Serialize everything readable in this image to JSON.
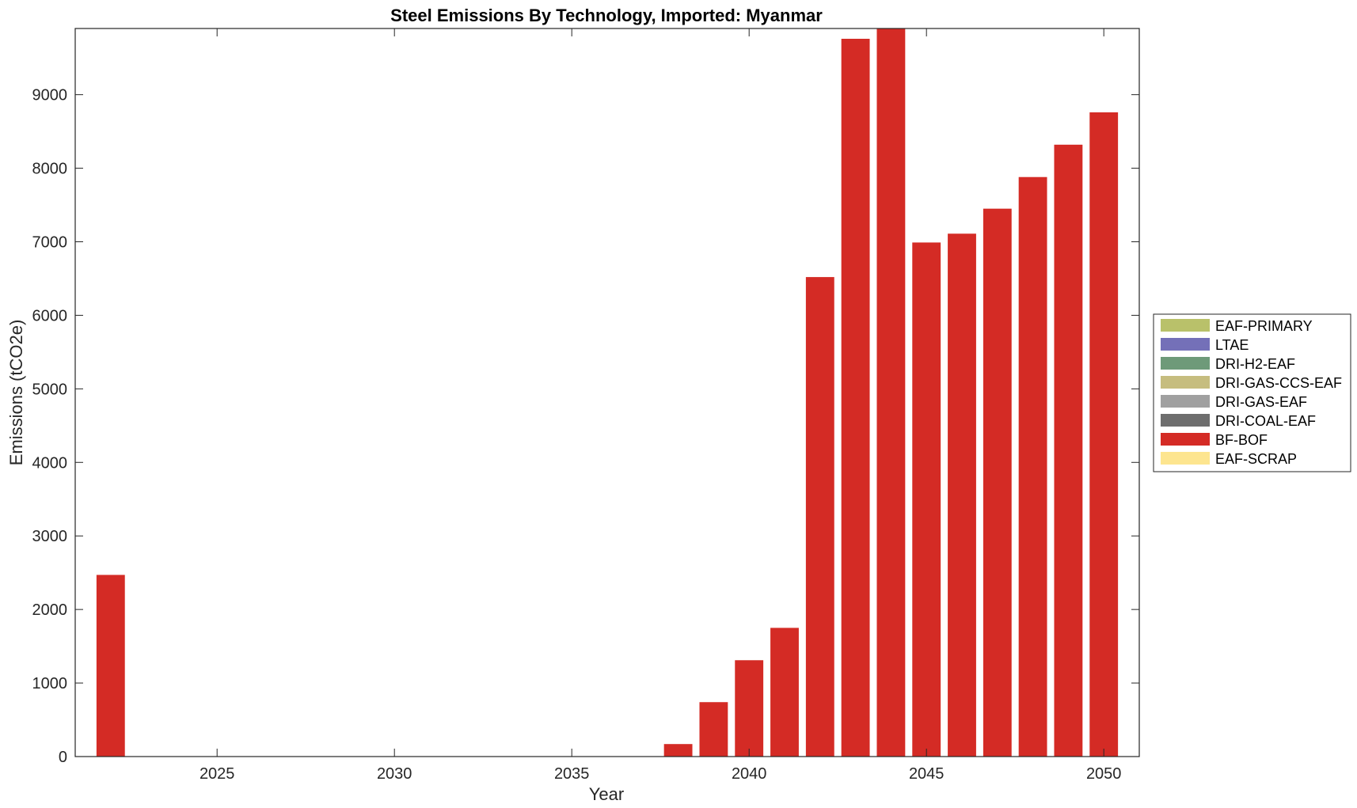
{
  "chart_data": {
    "type": "bar",
    "stacked": true,
    "title": "Steel Emissions By Technology, Imported: Myanmar",
    "xlabel": "Year",
    "ylabel": "Emissions (tCO2e)",
    "xlim": [
      2021,
      2051
    ],
    "ylim": [
      0,
      9900
    ],
    "xticks": [
      2025,
      2030,
      2035,
      2040,
      2045,
      2050
    ],
    "yticks": [
      0,
      1000,
      2000,
      3000,
      4000,
      5000,
      6000,
      7000,
      8000,
      9000
    ],
    "grid": false,
    "legend_position": "right",
    "x": [
      2022,
      2023,
      2024,
      2025,
      2026,
      2027,
      2028,
      2029,
      2030,
      2031,
      2032,
      2033,
      2034,
      2035,
      2036,
      2037,
      2038,
      2039,
      2040,
      2041,
      2042,
      2043,
      2044,
      2045,
      2046,
      2047,
      2048,
      2049,
      2050
    ],
    "series": [
      {
        "name": "EAF-PRIMARY",
        "color": "#b9c16a",
        "values": [
          0,
          0,
          0,
          0,
          0,
          0,
          0,
          0,
          0,
          0,
          0,
          0,
          0,
          0,
          0,
          0,
          0,
          0,
          0,
          0,
          0,
          0,
          0,
          0,
          0,
          0,
          0,
          0,
          0
        ]
      },
      {
        "name": "LTAE",
        "color": "#7470b8",
        "values": [
          0,
          0,
          0,
          0,
          0,
          0,
          0,
          0,
          0,
          0,
          0,
          0,
          0,
          0,
          0,
          0,
          0,
          0,
          0,
          0,
          0,
          0,
          0,
          0,
          0,
          0,
          0,
          0,
          0
        ]
      },
      {
        "name": "DRI-H2-EAF",
        "color": "#6e9a79",
        "values": [
          0,
          0,
          0,
          0,
          0,
          0,
          0,
          0,
          0,
          0,
          0,
          0,
          0,
          0,
          0,
          0,
          0,
          0,
          0,
          0,
          0,
          0,
          0,
          0,
          0,
          0,
          0,
          0,
          0
        ]
      },
      {
        "name": "DRI-GAS-CCS-EAF",
        "color": "#c6bd7f",
        "values": [
          0,
          0,
          0,
          0,
          0,
          0,
          0,
          0,
          0,
          0,
          0,
          0,
          0,
          0,
          0,
          0,
          0,
          0,
          0,
          0,
          0,
          0,
          0,
          0,
          0,
          0,
          0,
          0,
          0
        ]
      },
      {
        "name": "DRI-GAS-EAF",
        "color": "#a0a0a0",
        "values": [
          0,
          0,
          0,
          0,
          0,
          0,
          0,
          0,
          0,
          0,
          0,
          0,
          0,
          0,
          0,
          0,
          0,
          0,
          0,
          0,
          0,
          0,
          0,
          0,
          0,
          0,
          0,
          0,
          0
        ]
      },
      {
        "name": "DRI-COAL-EAF",
        "color": "#6e6e6e",
        "values": [
          0,
          0,
          0,
          0,
          0,
          0,
          0,
          0,
          0,
          0,
          0,
          0,
          0,
          0,
          0,
          0,
          0,
          0,
          0,
          0,
          0,
          0,
          0,
          0,
          0,
          0,
          0,
          0,
          0
        ]
      },
      {
        "name": "BF-BOF",
        "color": "#d42b25",
        "values": [
          2470,
          0,
          0,
          0,
          0,
          0,
          0,
          0,
          0,
          0,
          0,
          0,
          0,
          0,
          0,
          0,
          170,
          740,
          1310,
          1750,
          6520,
          9760,
          9900,
          6990,
          7110,
          7450,
          7880,
          8320,
          8760
        ]
      },
      {
        "name": "EAF-SCRAP",
        "color": "#fde58f",
        "values": [
          0,
          0,
          0,
          0,
          0,
          0,
          0,
          0,
          0,
          0,
          0,
          0,
          0,
          0,
          0,
          0,
          0,
          0,
          0,
          0,
          0,
          0,
          0,
          0,
          0,
          0,
          0,
          0,
          0
        ]
      }
    ]
  }
}
